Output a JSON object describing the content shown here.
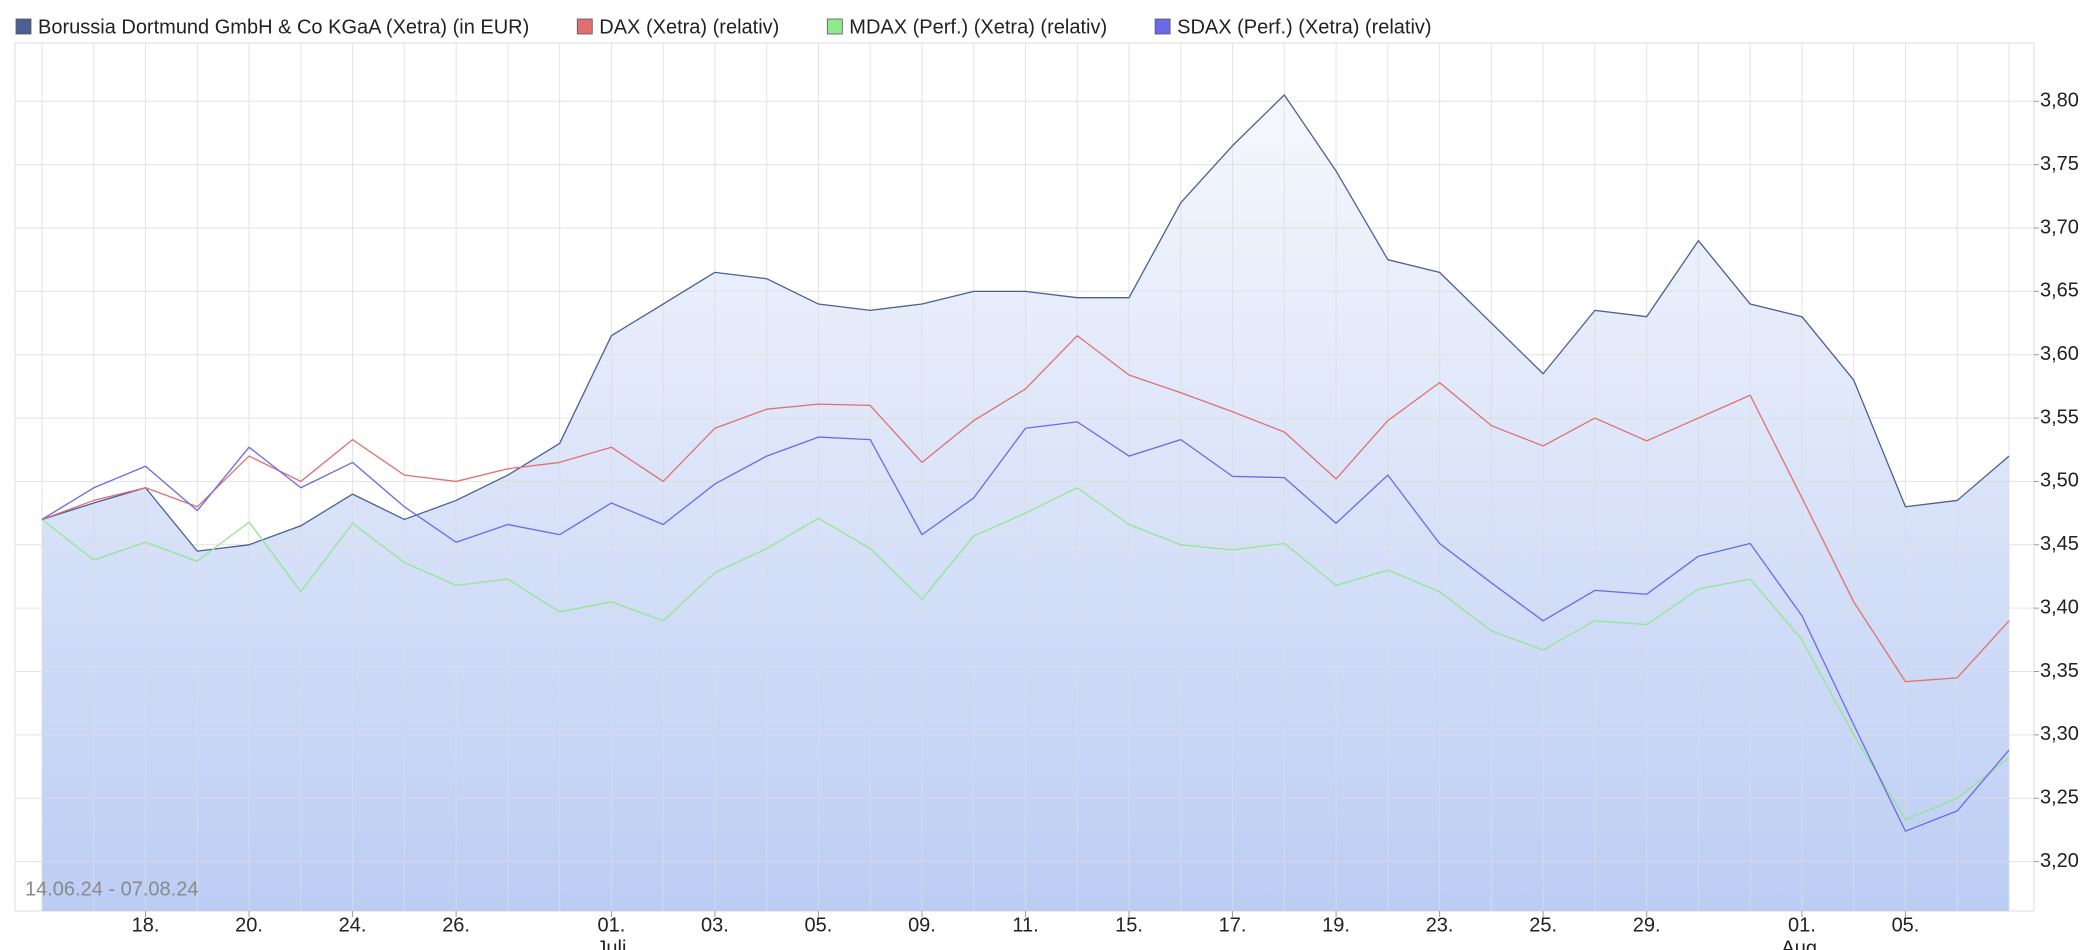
{
  "chart_data": {
    "type": "line",
    "annotation": "14.06.24 - 07.08.24",
    "grid": true,
    "categories": [
      null,
      null,
      "18.",
      null,
      "20.",
      null,
      "24.",
      null,
      "26.",
      null,
      null,
      "01.",
      null,
      "03.",
      null,
      "05.",
      null,
      "09.",
      null,
      "11.",
      null,
      "15.",
      null,
      "17.",
      null,
      "19.",
      null,
      "23.",
      null,
      "25.",
      null,
      "29.",
      null,
      null,
      "01.",
      null,
      "05.",
      null,
      null
    ],
    "category_sublabels": [
      null,
      null,
      null,
      null,
      null,
      null,
      null,
      null,
      null,
      null,
      null,
      "Juli",
      null,
      null,
      null,
      null,
      null,
      null,
      null,
      null,
      null,
      null,
      null,
      null,
      null,
      null,
      null,
      null,
      null,
      null,
      null,
      null,
      null,
      null,
      "Aug.",
      null,
      null,
      null,
      null
    ],
    "ylim": [
      3.161,
      3.846
    ],
    "yticks": [
      {
        "value": 3.2,
        "label": "3,20"
      },
      {
        "value": 3.25,
        "label": "3,25"
      },
      {
        "value": 3.3,
        "label": "3,30"
      },
      {
        "value": 3.35,
        "label": "3,35"
      },
      {
        "value": 3.4,
        "label": "3,40"
      },
      {
        "value": 3.45,
        "label": "3,45"
      },
      {
        "value": 3.5,
        "label": "3,50"
      },
      {
        "value": 3.55,
        "label": "3,55"
      },
      {
        "value": 3.6,
        "label": "3,60"
      },
      {
        "value": 3.65,
        "label": "3,65"
      },
      {
        "value": 3.7,
        "label": "3,70"
      },
      {
        "value": 3.75,
        "label": "3,75"
      },
      {
        "value": 3.8,
        "label": "3,80"
      }
    ],
    "series": [
      {
        "name": "Borussia Dortmund GmbH & Co KGaA (Xetra) (in EUR)",
        "color": "#4a5f94",
        "area": true,
        "values": [
          3.47,
          3.483,
          3.495,
          3.445,
          3.45,
          3.465,
          3.49,
          3.47,
          3.485,
          3.505,
          3.53,
          3.615,
          3.64,
          3.665,
          3.66,
          3.64,
          3.635,
          3.64,
          3.65,
          3.65,
          3.645,
          3.645,
          3.72,
          3.765,
          3.805,
          3.745,
          3.675,
          3.665,
          3.625,
          3.585,
          3.635,
          3.63,
          3.69,
          3.64,
          3.63,
          3.58,
          3.48,
          3.485,
          3.52
        ]
      },
      {
        "name": "DAX (Xetra) (relativ)",
        "color": "#e07070",
        "area": false,
        "values": [
          3.47,
          3.485,
          3.495,
          3.48,
          3.52,
          3.5,
          3.533,
          3.505,
          3.5,
          3.51,
          3.515,
          3.527,
          3.5,
          3.542,
          3.557,
          3.561,
          3.56,
          3.515,
          3.548,
          3.573,
          3.615,
          3.584,
          3.57,
          3.555,
          3.539,
          3.502,
          3.548,
          3.578,
          3.544,
          3.528,
          3.55,
          3.532,
          3.55,
          3.568,
          3.487,
          3.405,
          3.342,
          3.345,
          3.39
        ]
      },
      {
        "name": "MDAX (Perf.) (Xetra) (relativ)",
        "color": "#90e890",
        "area": false,
        "values": [
          3.47,
          3.438,
          3.452,
          3.437,
          3.468,
          3.413,
          3.467,
          3.436,
          3.418,
          3.423,
          3.397,
          3.405,
          3.39,
          3.428,
          3.447,
          3.471,
          3.447,
          3.407,
          3.457,
          3.475,
          3.495,
          3.466,
          3.45,
          3.446,
          3.451,
          3.418,
          3.43,
          3.413,
          3.382,
          3.367,
          3.39,
          3.387,
          3.415,
          3.423,
          3.375,
          3.3,
          3.233,
          3.25,
          3.282
        ]
      },
      {
        "name": "SDAX (Perf.) (Xetra) (relativ)",
        "color": "#6a6ae8",
        "area": false,
        "values": [
          3.47,
          3.495,
          3.512,
          3.477,
          3.527,
          3.495,
          3.515,
          3.48,
          3.452,
          3.466,
          3.458,
          3.483,
          3.466,
          3.498,
          3.52,
          3.535,
          3.533,
          3.458,
          3.487,
          3.542,
          3.547,
          3.52,
          3.533,
          3.504,
          3.503,
          3.467,
          3.505,
          3.451,
          3.42,
          3.39,
          3.414,
          3.411,
          3.441,
          3.451,
          3.394,
          3.308,
          3.224,
          3.24,
          3.288
        ]
      }
    ]
  }
}
